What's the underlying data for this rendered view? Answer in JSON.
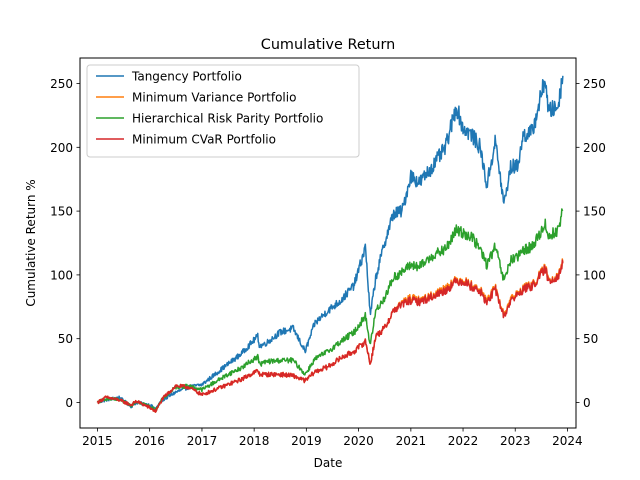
{
  "chart_data": {
    "type": "line",
    "title": "Cumulative Return",
    "xlabel": "Date",
    "ylabel": "Cumulative Return %",
    "xlim": [
      "2014-09-01",
      "2024-03-01"
    ],
    "ylim": [
      -20,
      270
    ],
    "x_ticks": [
      "2015-01-01",
      "2016-01-01",
      "2017-01-01",
      "2018-01-01",
      "2019-01-01",
      "2020-01-01",
      "2021-01-01",
      "2022-01-01",
      "2023-01-01",
      "2024-01-01"
    ],
    "x_tick_labels": [
      "2015",
      "2016",
      "2017",
      "2018",
      "2019",
      "2020",
      "2021",
      "2022",
      "2023",
      "2024"
    ],
    "y_ticks": [
      0,
      50,
      100,
      150,
      200,
      250
    ],
    "y_tick_labels": [
      "0",
      "50",
      "100",
      "150",
      "200",
      "250"
    ],
    "right_axis_mirrored": true,
    "grid": false,
    "legend_position": "top-left",
    "series": [
      {
        "name": "Tangency Portfolio",
        "color": "#1f77b4",
        "x": [
          "2015-01-01",
          "2015-03-01",
          "2015-06-01",
          "2015-08-25",
          "2015-10-01",
          "2016-01-01",
          "2016-02-11",
          "2016-04-01",
          "2016-07-01",
          "2016-10-01",
          "2017-01-01",
          "2017-04-01",
          "2017-07-01",
          "2017-10-01",
          "2018-01-26",
          "2018-02-08",
          "2018-04-01",
          "2018-07-01",
          "2018-10-01",
          "2018-12-24",
          "2019-03-01",
          "2019-06-01",
          "2019-09-01",
          "2019-12-01",
          "2020-02-19",
          "2020-03-23",
          "2020-05-01",
          "2020-07-01",
          "2020-09-01",
          "2020-11-01",
          "2021-01-01",
          "2021-03-01",
          "2021-06-01",
          "2021-09-01",
          "2021-11-15",
          "2022-01-01",
          "2022-03-01",
          "2022-05-01",
          "2022-06-16",
          "2022-08-15",
          "2022-10-14",
          "2022-12-01",
          "2023-01-15",
          "2023-03-01",
          "2023-05-01",
          "2023-07-31",
          "2023-08-20",
          "2023-10-27",
          "2023-11-30"
        ],
        "values": [
          0,
          2,
          4,
          -3,
          0,
          -2,
          -5,
          2,
          8,
          12,
          14,
          22,
          30,
          38,
          52,
          44,
          47,
          55,
          58,
          40,
          62,
          72,
          80,
          92,
          122,
          68,
          98,
          125,
          148,
          150,
          178,
          172,
          185,
          200,
          232,
          215,
          210,
          200,
          170,
          205,
          155,
          185,
          185,
          210,
          212,
          255,
          228,
          232,
          256
        ]
      },
      {
        "name": "Minimum Variance Portfolio",
        "color": "#ff7f0e",
        "x": [
          "2015-01-01",
          "2015-03-01",
          "2015-06-01",
          "2015-08-25",
          "2015-10-01",
          "2016-01-01",
          "2016-02-11",
          "2016-04-01",
          "2016-07-01",
          "2016-10-01",
          "2017-01-01",
          "2017-04-01",
          "2017-07-01",
          "2017-10-01",
          "2018-01-26",
          "2018-02-08",
          "2018-04-01",
          "2018-07-01",
          "2018-10-01",
          "2018-12-24",
          "2019-03-01",
          "2019-06-01",
          "2019-09-01",
          "2019-12-01",
          "2020-02-19",
          "2020-03-23",
          "2020-05-01",
          "2020-07-01",
          "2020-09-01",
          "2020-11-01",
          "2021-01-01",
          "2021-03-01",
          "2021-06-01",
          "2021-09-01",
          "2021-11-15",
          "2022-01-01",
          "2022-03-01",
          "2022-05-01",
          "2022-06-16",
          "2022-08-15",
          "2022-10-14",
          "2022-12-01",
          "2023-01-15",
          "2023-03-01",
          "2023-05-01",
          "2023-07-31",
          "2023-08-20",
          "2023-10-27",
          "2023-11-30"
        ],
        "values": [
          0,
          4,
          2,
          -2,
          1,
          -4,
          -7,
          3,
          13,
          12,
          6,
          10,
          14,
          18,
          25,
          22,
          22,
          22,
          21,
          17,
          24,
          28,
          35,
          40,
          48,
          30,
          52,
          58,
          72,
          78,
          82,
          80,
          84,
          90,
          96,
          96,
          92,
          88,
          80,
          90,
          68,
          82,
          85,
          90,
          92,
          106,
          96,
          100,
          110
        ]
      },
      {
        "name": "Hierarchical Risk Parity Portfolio",
        "color": "#2ca02c",
        "x": [
          "2015-01-01",
          "2015-03-01",
          "2015-06-01",
          "2015-08-25",
          "2015-10-01",
          "2016-01-01",
          "2016-02-11",
          "2016-04-01",
          "2016-07-01",
          "2016-10-01",
          "2017-01-01",
          "2017-04-01",
          "2017-07-01",
          "2017-10-01",
          "2018-01-26",
          "2018-02-08",
          "2018-04-01",
          "2018-07-01",
          "2018-10-01",
          "2018-12-24",
          "2019-03-01",
          "2019-06-01",
          "2019-09-01",
          "2019-12-01",
          "2020-02-19",
          "2020-03-23",
          "2020-05-01",
          "2020-07-01",
          "2020-09-01",
          "2020-11-01",
          "2021-01-01",
          "2021-03-01",
          "2021-06-01",
          "2021-09-01",
          "2021-11-15",
          "2022-01-01",
          "2022-03-01",
          "2022-05-01",
          "2022-06-16",
          "2022-08-15",
          "2022-10-14",
          "2022-12-01",
          "2023-01-15",
          "2023-03-01",
          "2023-05-01",
          "2023-07-31",
          "2023-08-20",
          "2023-10-27",
          "2023-11-30"
        ],
        "values": [
          0,
          3,
          2,
          -2,
          1,
          -3,
          -6,
          3,
          12,
          13,
          10,
          16,
          22,
          27,
          36,
          30,
          32,
          33,
          33,
          22,
          34,
          40,
          48,
          55,
          68,
          45,
          72,
          82,
          98,
          102,
          108,
          106,
          115,
          120,
          135,
          133,
          130,
          120,
          108,
          122,
          95,
          112,
          113,
          120,
          122,
          140,
          130,
          135,
          151
        ]
      },
      {
        "name": "Minimum CVaR Portfolio",
        "color": "#d62728",
        "x": [
          "2015-01-01",
          "2015-03-01",
          "2015-06-01",
          "2015-08-25",
          "2015-10-01",
          "2016-01-01",
          "2016-02-11",
          "2016-04-01",
          "2016-07-01",
          "2016-10-01",
          "2017-01-01",
          "2017-04-01",
          "2017-07-01",
          "2017-10-01",
          "2018-01-26",
          "2018-02-08",
          "2018-04-01",
          "2018-07-01",
          "2018-10-01",
          "2018-12-24",
          "2019-03-01",
          "2019-06-01",
          "2019-09-01",
          "2019-12-01",
          "2020-02-19",
          "2020-03-23",
          "2020-05-01",
          "2020-07-01",
          "2020-09-01",
          "2020-11-01",
          "2021-01-01",
          "2021-03-01",
          "2021-06-01",
          "2021-09-01",
          "2021-11-15",
          "2022-01-01",
          "2022-03-01",
          "2022-05-01",
          "2022-06-16",
          "2022-08-15",
          "2022-10-14",
          "2022-12-01",
          "2023-01-15",
          "2023-03-01",
          "2023-05-01",
          "2023-07-31",
          "2023-08-20",
          "2023-10-27",
          "2023-11-30"
        ],
        "values": [
          0,
          4,
          2,
          -2,
          1,
          -4,
          -7,
          3,
          13,
          12,
          6,
          10,
          14,
          18,
          25,
          22,
          22,
          22,
          21,
          17,
          24,
          28,
          35,
          40,
          48,
          30,
          52,
          58,
          72,
          77,
          80,
          79,
          83,
          88,
          95,
          95,
          91,
          87,
          78,
          89,
          67,
          80,
          84,
          89,
          91,
          105,
          95,
          99,
          109
        ]
      }
    ]
  }
}
